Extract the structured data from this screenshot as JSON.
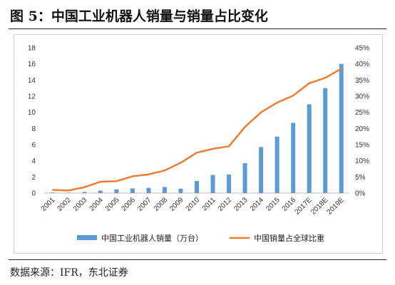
{
  "figure": {
    "title": "图 5：中国工业机器人销量与销量占比变化",
    "source": "数据来源：IFR，东北证券"
  },
  "chart_data": {
    "type": "bar",
    "categories": [
      "2001",
      "2002",
      "2003",
      "2004",
      "2005",
      "2006",
      "2007",
      "2008",
      "2009",
      "2010",
      "2011",
      "2012",
      "2013",
      "2014",
      "2015",
      "2016",
      "2017E",
      "2018E",
      "2019E"
    ],
    "series": [
      {
        "name": "中国工业机器人销量（万台）",
        "type": "bar",
        "axis": "left",
        "color": "#5B9BD5",
        "values": [
          0.07,
          0.05,
          0.14,
          0.3,
          0.45,
          0.58,
          0.65,
          0.76,
          0.55,
          1.5,
          2.25,
          2.3,
          3.7,
          5.7,
          7.0,
          8.7,
          11.0,
          13.0,
          16.0
        ]
      },
      {
        "name": "中国销量占全球比重",
        "type": "line",
        "axis": "right",
        "color": "#ED7D31",
        "values": [
          0.01,
          0.008,
          0.018,
          0.035,
          0.037,
          0.052,
          0.058,
          0.07,
          0.094,
          0.125,
          0.137,
          0.145,
          0.205,
          0.25,
          0.28,
          0.302,
          0.34,
          0.357,
          0.385
        ]
      }
    ],
    "y_left": {
      "min": 0,
      "max": 18,
      "ticks": [
        "0",
        "2",
        "4",
        "6",
        "8",
        "10",
        "12",
        "14",
        "16",
        "18"
      ]
    },
    "y_right": {
      "min": 0,
      "max": 0.45,
      "ticks": [
        "0%",
        "5%",
        "10%",
        "15%",
        "20%",
        "25%",
        "30%",
        "35%",
        "40%",
        "45%"
      ]
    },
    "grid": false,
    "legend": "bottom"
  }
}
